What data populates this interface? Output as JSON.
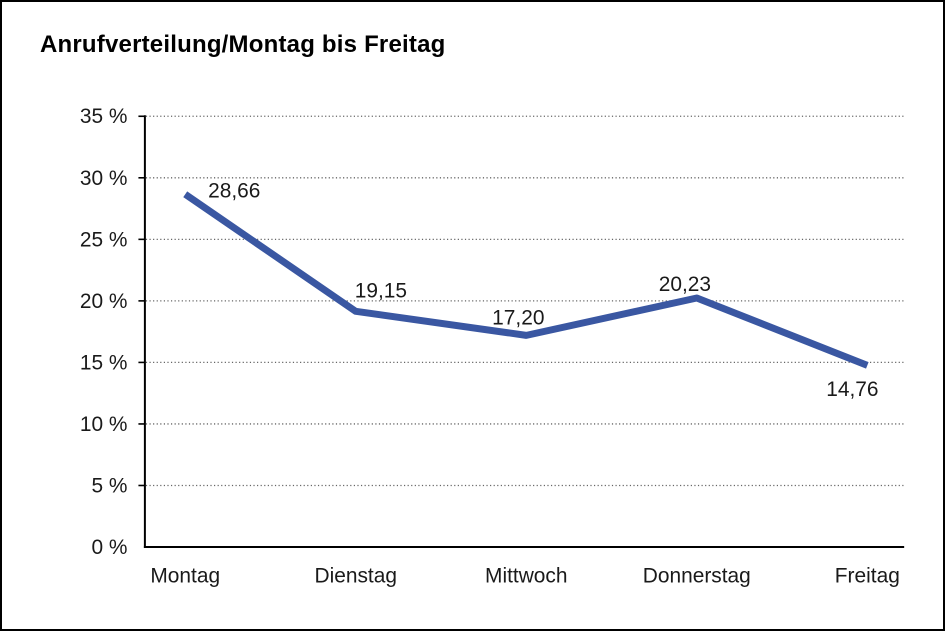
{
  "frame": {
    "background": "#ffffff",
    "border_color": "#000000"
  },
  "chart_data": {
    "type": "line",
    "title": "Anrufverteilung/Montag bis Freitag",
    "categories": [
      "Montag",
      "Dienstag",
      "Mittwoch",
      "Donnerstag",
      "Freitag"
    ],
    "values": [
      28.66,
      19.15,
      17.2,
      20.23,
      14.76
    ],
    "value_labels": [
      "28,66",
      "19,15",
      "17,20",
      "20,23",
      "14,76"
    ],
    "y_ticks": [
      0,
      5,
      10,
      15,
      20,
      25,
      30,
      35
    ],
    "y_tick_labels": [
      "0 %",
      "5 %",
      "10 %",
      "15 %",
      "20 %",
      "25 %",
      "30 %",
      "35 %"
    ],
    "ylim": [
      0,
      35
    ],
    "xlabel": "",
    "ylabel": "",
    "legend": "none",
    "grid": "horizontal-dotted",
    "line_color": "#3A57A2",
    "grid_color": "#666666",
    "axis_color": "#000000",
    "text_color": "#1a1a1a"
  }
}
